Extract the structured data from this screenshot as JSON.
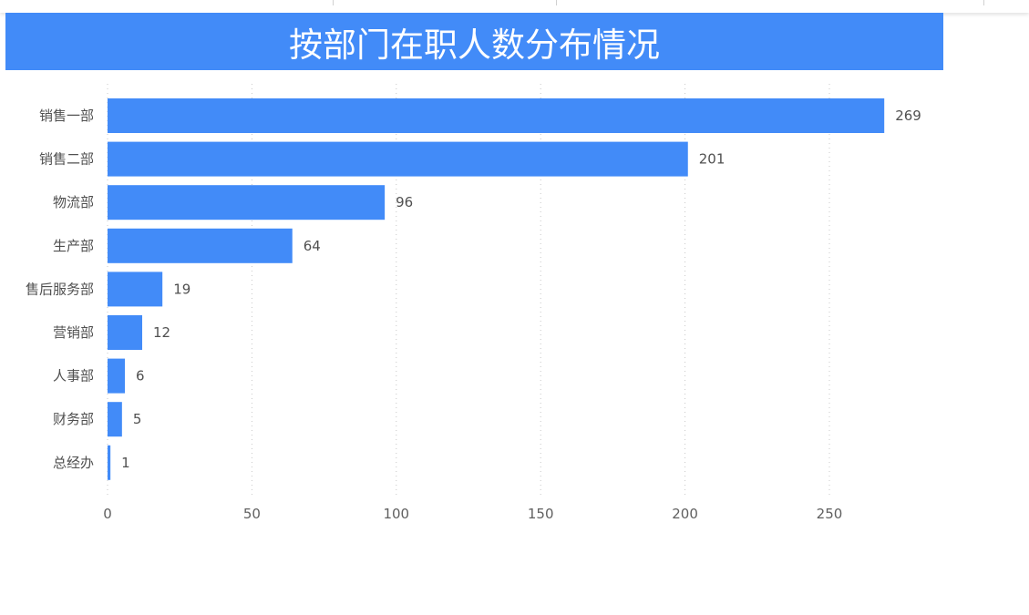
{
  "chart_data": {
    "type": "bar",
    "orientation": "horizontal",
    "title": "按部门在职人数分布情况",
    "categories": [
      "销售一部",
      "销售二部",
      "物流部",
      "生产部",
      "售后服务部",
      "营销部",
      "人事部",
      "财务部",
      "总经办"
    ],
    "values": [
      269,
      201,
      96,
      64,
      19,
      12,
      6,
      5,
      1
    ],
    "xlim": [
      0,
      280
    ],
    "xticks": [
      0,
      50,
      100,
      150,
      200,
      250
    ],
    "xlabel": "",
    "ylabel": "",
    "grid": "vertical-dotted",
    "data_labels": true,
    "bar_color": "#428bf8",
    "title_bg_color": "#428bf8"
  }
}
